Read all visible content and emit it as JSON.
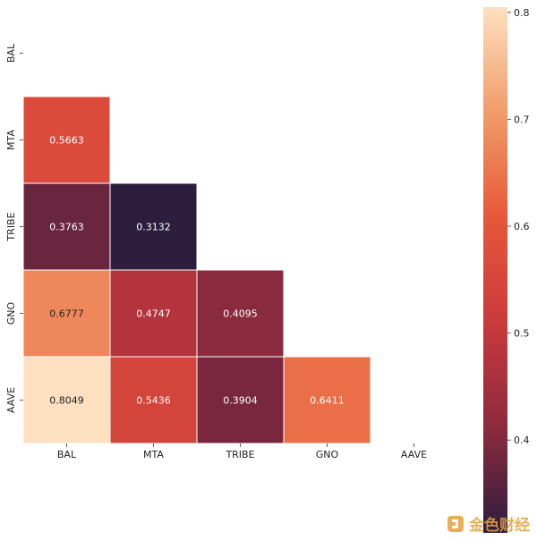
{
  "chart_data": {
    "type": "heatmap",
    "mask": "upper-triangle-including-diagonal",
    "labels": [
      "BAL",
      "MTA",
      "TRIBE",
      "GNO",
      "AAVE"
    ],
    "cells": [
      {
        "row": "MTA",
        "col": "BAL",
        "value": 0.5663,
        "label": "0.5663"
      },
      {
        "row": "TRIBE",
        "col": "BAL",
        "value": 0.3763,
        "label": "0.3763"
      },
      {
        "row": "TRIBE",
        "col": "MTA",
        "value": 0.3132,
        "label": "0.3132"
      },
      {
        "row": "GNO",
        "col": "BAL",
        "value": 0.6777,
        "label": "0.6777"
      },
      {
        "row": "GNO",
        "col": "MTA",
        "value": 0.4747,
        "label": "0.4747"
      },
      {
        "row": "GNO",
        "col": "TRIBE",
        "value": 0.4095,
        "label": "0.4095"
      },
      {
        "row": "AAVE",
        "col": "BAL",
        "value": 0.8049,
        "label": "0.8049"
      },
      {
        "row": "AAVE",
        "col": "MTA",
        "value": 0.5436,
        "label": "0.5436"
      },
      {
        "row": "AAVE",
        "col": "TRIBE",
        "value": 0.3904,
        "label": "0.3904"
      },
      {
        "row": "AAVE",
        "col": "GNO",
        "value": 0.6411,
        "label": "0.6411"
      }
    ],
    "colorbar": {
      "range": [
        0.3132,
        0.8049
      ],
      "ticks": [
        0.4,
        0.5,
        0.6,
        0.7,
        0.8
      ],
      "tick_labels": [
        "0.4",
        "0.5",
        "0.6",
        "0.7",
        "0.8"
      ],
      "colormap": [
        "#2d1e3e",
        "#8c2a3e",
        "#c93a3c",
        "#e6583a",
        "#f19c68",
        "#fde0c0"
      ]
    },
    "title": "",
    "xlabel": "",
    "ylabel": ""
  },
  "watermark": {
    "text": "金色财经",
    "icon": "jinse-logo-icon",
    "color": "#e6a23c"
  }
}
